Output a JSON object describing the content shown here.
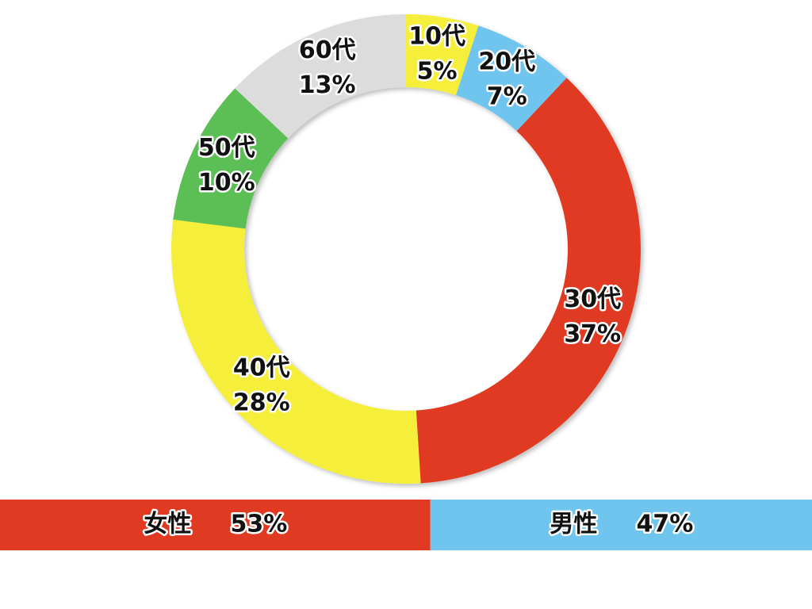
{
  "chart_data": [
    {
      "type": "donut",
      "categories": [
        "10代",
        "20代",
        "30代",
        "40代",
        "50代",
        "60代"
      ],
      "values": [
        5,
        7,
        37,
        28,
        10,
        13
      ],
      "value_labels": [
        "5%",
        "7%",
        "37%",
        "28%",
        "10%",
        "13%"
      ],
      "colors": [
        "#f5ee3a",
        "#6fc5ee",
        "#e03a22",
        "#f5ee3a",
        "#5cbf55",
        "#dcdcdc"
      ]
    },
    {
      "type": "stacked-bar",
      "series": [
        {
          "name": "女性",
          "color": "#e03a22",
          "values": [
            53
          ],
          "value_labels": [
            "53%"
          ]
        },
        {
          "name": "男性",
          "color": "#6fc5ee",
          "values": [
            47
          ],
          "value_labels": [
            "47%"
          ]
        }
      ]
    }
  ]
}
